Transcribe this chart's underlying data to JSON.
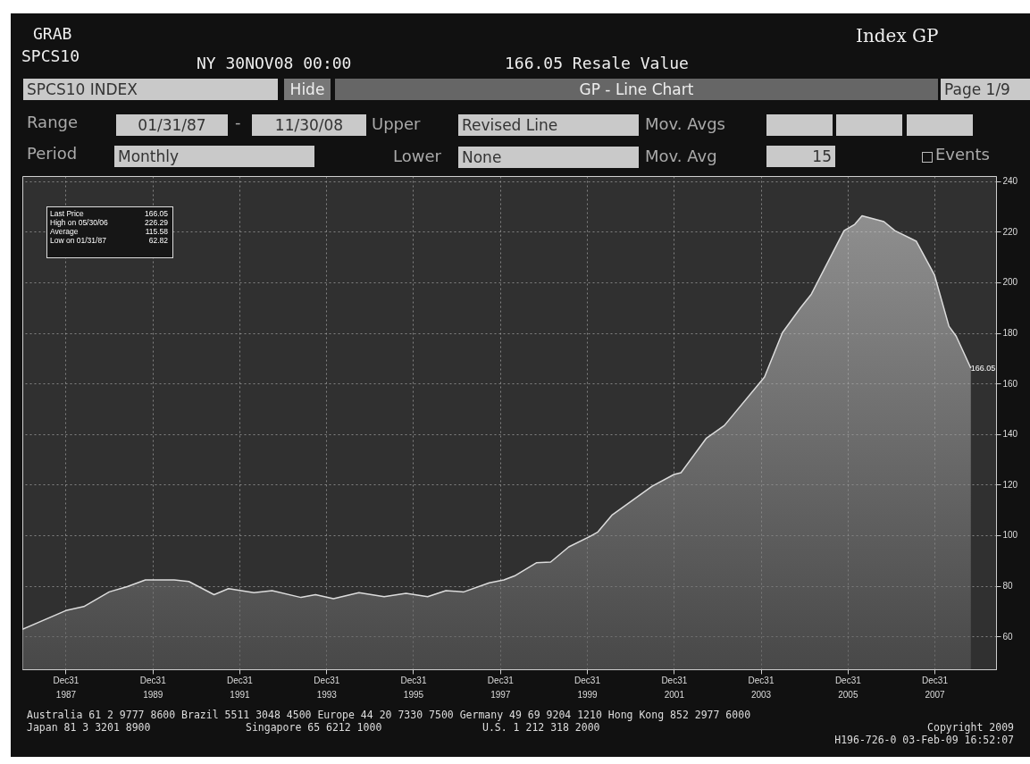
{
  "chart_data": {
    "type": "area",
    "x": [
      "1987-01",
      "1988-01",
      "1988-06",
      "1989-01",
      "1989-06",
      "1989-11",
      "1990-07",
      "1990-11",
      "1991-06",
      "1991-10",
      "1992-05",
      "1992-10",
      "1993-06",
      "1993-10",
      "1994-03",
      "1994-10",
      "1995-05",
      "1995-11",
      "1996-05",
      "1996-10",
      "1997-03",
      "1997-10",
      "1998-02",
      "1998-05",
      "1998-11",
      "1999-03",
      "1999-08",
      "2000-02",
      "2000-04",
      "2000-08",
      "2001-07",
      "2002-01",
      "2002-03",
      "2002-10",
      "2003-03",
      "2004-02",
      "2004-07",
      "2004-12",
      "2005-03",
      "2005-12",
      "2006-03",
      "2006-05",
      "2006-11",
      "2007-02",
      "2007-08",
      "2008-01",
      "2008-05",
      "2008-07",
      "2008-11"
    ],
    "series": [
      {
        "color": "#dcdcdc",
        "values": [
          62.82,
          70.2,
          71.8,
          77.6,
          79.7,
          82.3,
          82.3,
          81.7,
          76.5,
          78.9,
          77.3,
          78.1,
          75.4,
          76.5,
          74.9,
          77.3,
          75.7,
          77.0,
          75.7,
          78.1,
          77.6,
          81.2,
          82.3,
          83.9,
          89.1,
          89.4,
          95.4,
          99.7,
          101.3,
          108.1,
          119.4,
          124.0,
          124.7,
          138.4,
          143.4,
          162.5,
          180.1,
          190.0,
          195.3,
          220.4,
          222.9,
          226.29,
          224.0,
          220.4,
          216.2,
          202.8,
          182.6,
          178.7,
          166.05
        ]
      }
    ],
    "xlim": [
      "1987-01",
      "2009-06"
    ],
    "xticks": [
      {
        "value": "1987-12-31",
        "label": "Dec31 1987"
      },
      {
        "value": "1989-12-31",
        "label": "Dec31 1989"
      },
      {
        "value": "1991-12-31",
        "label": "Dec31 1991"
      },
      {
        "value": "1993-12-31",
        "label": "Dec31 1993"
      },
      {
        "value": "1995-12-31",
        "label": "Dec31 1995"
      },
      {
        "value": "1997-12-31",
        "label": "Dec31 1997"
      },
      {
        "value": "1999-12-31",
        "label": "Dec31 1999"
      },
      {
        "value": "2001-12-31",
        "label": "Dec31 2001"
      },
      {
        "value": "2003-12-31",
        "label": "Dec31 2003"
      },
      {
        "value": "2005-12-31",
        "label": "Dec31 2005"
      },
      {
        "value": "2007-12-31",
        "label": "Dec31 2007"
      }
    ],
    "ylim": [
      47,
      242
    ],
    "yticks": [
      60,
      80,
      100,
      120,
      140,
      160,
      180,
      200,
      220,
      240
    ],
    "grid": true,
    "annotations": [
      "GRAB",
      "SPCS10",
      "NY 30NOV08 00:00",
      "166.05 Resale Value",
      "Index GP",
      "SPCS10 INDEX",
      "Hide",
      "GP - Line Chart",
      "Page 1/9",
      "Range",
      "01/31/87",
      "-",
      "11/30/08",
      "Upper",
      "Revised Line",
      "Mov. Avgs",
      "Period",
      "Monthly",
      "Lower",
      "None",
      "Mov. Avg",
      "15",
      "Events",
      "Last Price",
      "166.05",
      "High on 05/30/06",
      "226.29",
      "Average",
      "115.58",
      "Low on 01/31/87",
      "62.82",
      "Australia 61 2 9777 8600 Brazil 5511 3048 4500 Europe 44 20 7330 7500 Germany 49 69 9204 1210 Hong Kong 852 2977 6000",
      "Japan 81 3 3201 8900",
      "Singapore 65 6212 1000",
      "U.S. 1 212 318 2000",
      "Copyright 2009",
      "H196-726-0 03-Feb-09 16:52:07",
      {
        "text": "166.05",
        "x": "2008-11",
        "y": 166.05
      }
    ]
  }
}
